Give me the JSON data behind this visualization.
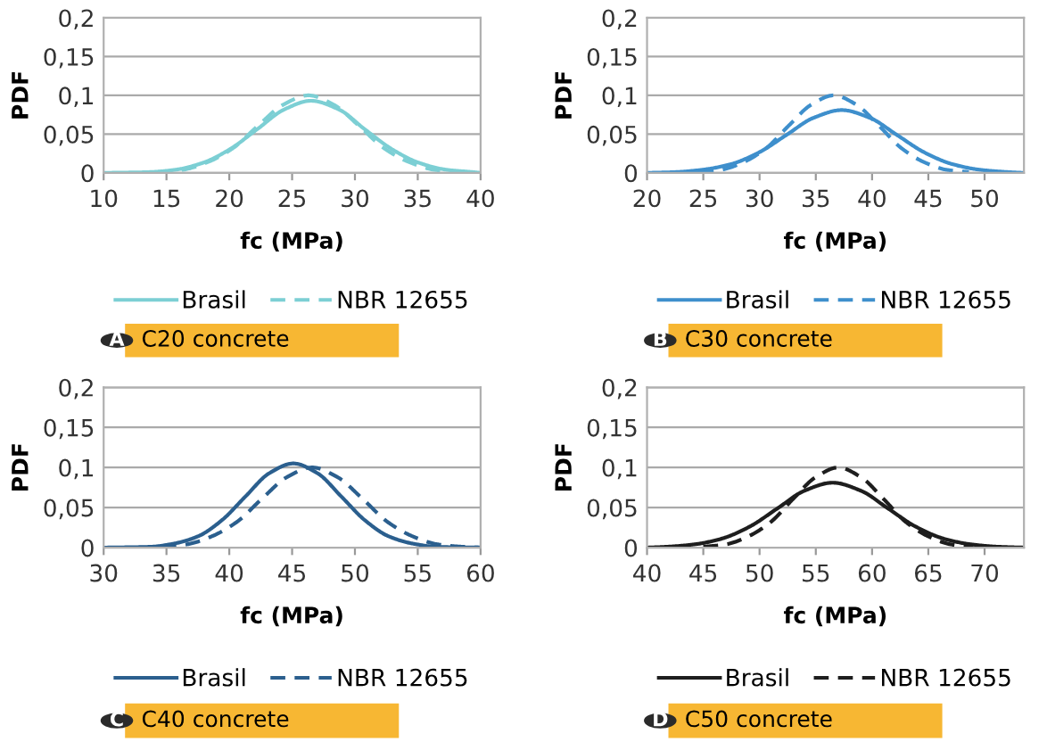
{
  "chart_data": [
    {
      "type": "line",
      "xlabel": "fc (MPa)",
      "ylabel": "PDF",
      "xlim": [
        10,
        40
      ],
      "xticks": [
        10,
        15,
        20,
        25,
        30,
        35,
        40
      ],
      "ylim": [
        0,
        0.2
      ],
      "yticks": [
        0,
        {
          "value": 0.05,
          "label": "0,05"
        },
        {
          "value": 0.1,
          "label": "0,1"
        },
        {
          "value": 0.15,
          "label": "0,15"
        },
        {
          "value": 0.2,
          "label": "0,2"
        }
      ],
      "grid": "y",
      "legend": "bottom",
      "annotations": [
        "A",
        "C20 concrete"
      ],
      "series": [
        {
          "name": "Brasil",
          "color": "#7ccfd4",
          "line_style": "solid",
          "x": [
            10,
            13.6,
            15.7,
            17.9,
            20.0,
            22.2,
            24.4,
            26.5,
            28.7,
            30.8,
            33.0,
            35.1,
            37.3,
            39.4,
            40
          ],
          "values": [
            0,
            0.001,
            0.004,
            0.013,
            0.03,
            0.056,
            0.082,
            0.093,
            0.082,
            0.056,
            0.03,
            0.013,
            0.004,
            0.001,
            0
          ]
        },
        {
          "name": "NBR 12655",
          "color": "#7ccfd4",
          "line_style": "dashed",
          "x": [
            14.3,
            16.3,
            18.3,
            20.3,
            22.3,
            24.3,
            26.3,
            28.3,
            30.3,
            32.3,
            34.3,
            36.3,
            38.3
          ],
          "values": [
            0.001,
            0.004,
            0.014,
            0.032,
            0.061,
            0.088,
            0.1,
            0.088,
            0.061,
            0.032,
            0.014,
            0.004,
            0.001
          ]
        }
      ]
    },
    {
      "type": "line",
      "xlabel": "fc (MPa)",
      "ylabel": "PDF",
      "xlim": [
        20,
        53.5
      ],
      "xticks": [
        20,
        25,
        30,
        35,
        40,
        45,
        50
      ],
      "ylim": [
        0,
        0.2
      ],
      "yticks": [
        0,
        {
          "value": 0.05,
          "label": "0,05"
        },
        {
          "value": 0.1,
          "label": "0,1"
        },
        {
          "value": 0.15,
          "label": "0,15"
        },
        {
          "value": 0.2,
          "label": "0,2"
        }
      ],
      "grid": "y",
      "legend": "bottom",
      "annotations": [
        "B",
        "C30 concrete"
      ],
      "series": [
        {
          "name": "Brasil",
          "color": "#3e8fcc",
          "line_style": "solid",
          "x": [
            20,
            22.5,
            24.9,
            27.4,
            29.9,
            32.4,
            34.8,
            37.3,
            39.8,
            42.2,
            44.7,
            47.2,
            49.6,
            52.1,
            53.5
          ],
          "values": [
            0,
            0.001,
            0.004,
            0.011,
            0.026,
            0.049,
            0.071,
            0.081,
            0.071,
            0.049,
            0.026,
            0.011,
            0.004,
            0.001,
            0
          ]
        },
        {
          "name": "NBR 12655",
          "color": "#3e8fcc",
          "line_style": "dashed",
          "x": [
            24.6,
            26.6,
            28.6,
            30.6,
            32.6,
            34.6,
            36.6,
            38.6,
            40.6,
            42.6,
            44.6,
            46.6,
            48.6
          ],
          "values": [
            0.001,
            0.004,
            0.014,
            0.032,
            0.061,
            0.088,
            0.1,
            0.088,
            0.061,
            0.032,
            0.014,
            0.004,
            0.001
          ]
        }
      ]
    },
    {
      "type": "line",
      "xlabel": "fc (MPa)",
      "ylabel": "PDF",
      "xlim": [
        30,
        60
      ],
      "xticks": [
        30,
        35,
        40,
        45,
        50,
        55,
        60
      ],
      "ylim": [
        0,
        0.2
      ],
      "yticks": [
        0,
        {
          "value": 0.05,
          "label": "0,05"
        },
        {
          "value": 0.1,
          "label": "0,1"
        },
        {
          "value": 0.15,
          "label": "0,15"
        },
        {
          "value": 0.2,
          "label": "0,2"
        }
      ],
      "grid": "y",
      "legend": "bottom",
      "annotations": [
        "C",
        "C40 concrete"
      ],
      "series": [
        {
          "name": "Brasil",
          "color": "#2b5f8e",
          "line_style": "solid",
          "x": [
            30,
            33.7,
            35.6,
            37.5,
            39.4,
            41.3,
            43.2,
            45.1,
            47.0,
            48.9,
            50.8,
            52.7,
            54.6,
            56.5,
            60
          ],
          "values": [
            0,
            0.001,
            0.005,
            0.014,
            0.034,
            0.064,
            0.093,
            0.105,
            0.093,
            0.064,
            0.034,
            0.014,
            0.005,
            0.001,
            0
          ]
        },
        {
          "name": "NBR 12655",
          "color": "#2b5f8e",
          "line_style": "dashed",
          "x": [
            34.6,
            36.6,
            38.6,
            40.6,
            42.6,
            44.6,
            46.6,
            48.6,
            50.6,
            52.6,
            54.6,
            56.6,
            58.6,
            60
          ],
          "values": [
            0.001,
            0.004,
            0.014,
            0.032,
            0.061,
            0.088,
            0.1,
            0.088,
            0.061,
            0.032,
            0.014,
            0.004,
            0.001,
            0
          ]
        }
      ]
    },
    {
      "type": "line",
      "xlabel": "fc (MPa)",
      "ylabel": "PDF",
      "xlim": [
        40,
        73.5
      ],
      "xticks": [
        40,
        45,
        50,
        55,
        60,
        65,
        70
      ],
      "ylim": [
        0,
        0.2
      ],
      "yticks": [
        0,
        {
          "value": 0.05,
          "label": "0,05"
        },
        {
          "value": 0.1,
          "label": "0,1"
        },
        {
          "value": 0.15,
          "label": "0,15"
        },
        {
          "value": 0.2,
          "label": "0,2"
        }
      ],
      "grid": "y",
      "legend": "bottom",
      "annotations": [
        "D",
        "C50 concrete"
      ],
      "series": [
        {
          "name": "Brasil",
          "color": "#1e1e1e",
          "line_style": "solid",
          "x": [
            40,
            41.7,
            44.2,
            46.6,
            49.1,
            51.6,
            54.0,
            56.5,
            59.0,
            61.4,
            63.9,
            66.4,
            68.8,
            71.3,
            73.5
          ],
          "values": [
            0,
            0.001,
            0.004,
            0.011,
            0.026,
            0.049,
            0.071,
            0.081,
            0.071,
            0.049,
            0.026,
            0.011,
            0.004,
            0.001,
            0
          ]
        },
        {
          "name": "NBR 12655",
          "color": "#1e1e1e",
          "line_style": "dashed",
          "x": [
            45,
            47,
            49,
            51,
            53,
            55,
            57,
            59,
            61,
            63,
            65,
            67,
            69
          ],
          "values": [
            0.001,
            0.004,
            0.014,
            0.032,
            0.061,
            0.088,
            0.1,
            0.088,
            0.061,
            0.032,
            0.014,
            0.004,
            0.001
          ]
        }
      ]
    }
  ]
}
